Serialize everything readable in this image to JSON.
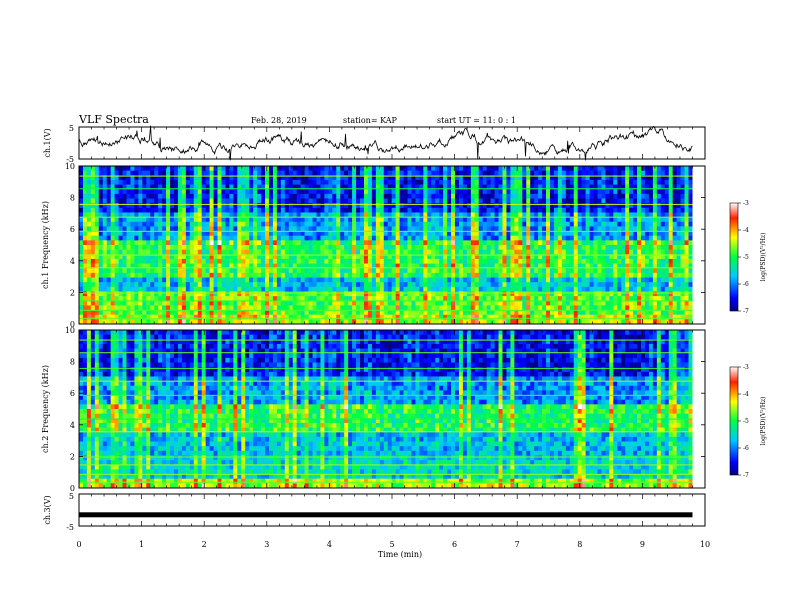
{
  "header": {
    "title": "VLF Spectra",
    "date": "Feb. 28, 2019",
    "station": "station= KAP",
    "start": "start  UT =   11: 0  : 1"
  },
  "chart_data": [
    {
      "type": "line",
      "panel": "ch1-waveform",
      "ylabel": "ch.1(V)",
      "xlim": [
        0,
        10
      ],
      "ylim": [
        -5,
        5
      ],
      "yticks": [
        "5",
        "-5"
      ],
      "trace_color": "#000000"
    },
    {
      "type": "heatmap",
      "panel": "ch1-spectrogram",
      "ylabel": "ch.1 Frequency (kHz)",
      "xlim": [
        0,
        10
      ],
      "ylim": [
        0,
        10
      ],
      "yticks": [
        "0",
        "2",
        "4",
        "6",
        "8",
        "10"
      ],
      "colorbar": {
        "label": "log(PSD)(V²/Hz)",
        "range": [
          -7,
          -3
        ],
        "ticks": [
          "-3",
          "-4",
          "-5",
          "-6",
          "-7"
        ]
      }
    },
    {
      "type": "heatmap",
      "panel": "ch2-spectrogram",
      "ylabel": "ch.2 Frequency (kHz)",
      "xlim": [
        0,
        10
      ],
      "ylim": [
        0,
        10
      ],
      "yticks": [
        "0",
        "2",
        "4",
        "6",
        "8",
        "10"
      ],
      "colorbar": {
        "label": "log(PSD)(V²/Hz)",
        "range": [
          -7,
          -3
        ],
        "ticks": [
          "-3",
          "-4",
          "-5",
          "-6",
          "-7"
        ]
      }
    },
    {
      "type": "line",
      "panel": "ch3-waveform",
      "ylabel": "ch.3(V)",
      "xlim": [
        0,
        10
      ],
      "ylim": [
        -5,
        5
      ],
      "yticks": [
        "5",
        "-5"
      ],
      "constant_value": -1.5,
      "trace_color": "#000000"
    }
  ],
  "xaxis": {
    "label": "Time  (min)",
    "ticks": [
      "0",
      "1",
      "2",
      "3",
      "4",
      "5",
      "6",
      "7",
      "8",
      "9",
      "10"
    ],
    "data_end": 9.8
  }
}
